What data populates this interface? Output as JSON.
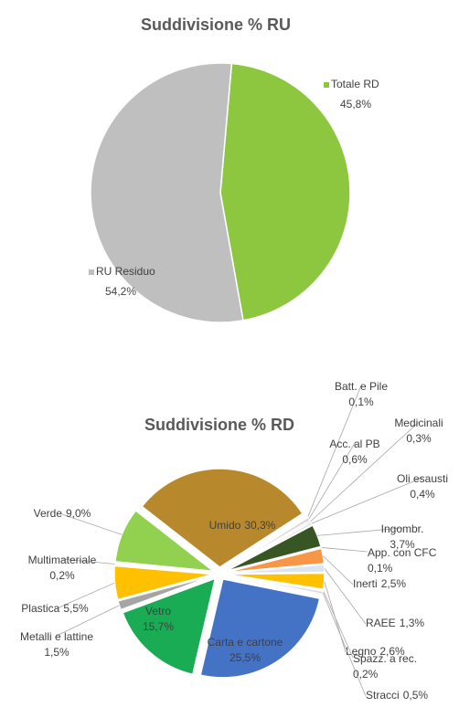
{
  "chart_data": [
    {
      "type": "pie",
      "title": "Suddivisione % RU",
      "categories": [
        "Totale RD",
        "RU Residuo"
      ],
      "values": [
        45.8,
        54.2
      ],
      "value_labels": [
        "45,8%",
        "54,2%"
      ],
      "colors": [
        "#8dc63f",
        "#bfbfbf"
      ]
    },
    {
      "type": "pie",
      "title": "Suddivisione % RD",
      "categories": [
        "Umido",
        "Batt. e Pile",
        "Acc. al PB",
        "Medicinali",
        "Oli esausti",
        "Ingombr.",
        "App. con CFC",
        "Inerti",
        "RAEE",
        "Legno",
        "Spazz. a rec.",
        "Stracci",
        "Carta e cartone",
        "Vetro",
        "Metalli e lattine",
        "Plastica",
        "Multimateriale",
        "Verde"
      ],
      "values": [
        30.3,
        0.1,
        0.6,
        0.3,
        0.4,
        3.7,
        0.1,
        2.5,
        1.3,
        2.6,
        0.2,
        0.5,
        25.5,
        15.7,
        1.5,
        5.5,
        0.2,
        9.0
      ],
      "value_labels": [
        "30,3%",
        "0,1%",
        "0,6%",
        "0,3%",
        "0,4%",
        "3,7%",
        "0,1%",
        "2,5%",
        "1,3%",
        "2,6%",
        "0,2%",
        "0,5%",
        "25,5%",
        "15,7%",
        "1,5%",
        "5,5%",
        "0,2%",
        "9,0%"
      ],
      "colors": [
        "#b8892c",
        "#d9d9d9",
        "#d9d9d9",
        "#d9d9d9",
        "#d9d9d9",
        "#375623",
        "#d9d9d9",
        "#f79646",
        "#dbe5f1",
        "#ffc000",
        "#d9d9d9",
        "#d9d9d9",
        "#4472c4",
        "#1aab55",
        "#a5a5a5",
        "#ffc000",
        "#bfbfbf",
        "#92d050"
      ]
    }
  ]
}
